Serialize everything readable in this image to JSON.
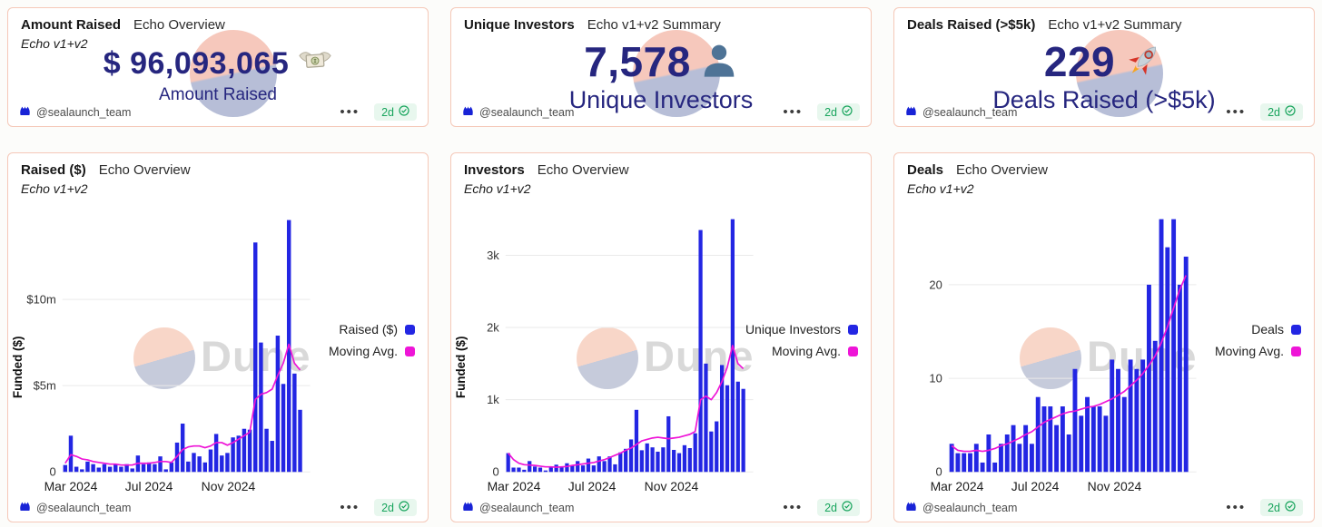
{
  "footer": {
    "author": "@sealaunch_team",
    "menu": "•••",
    "age": "2d",
    "age_color": "#17a45c",
    "logo_icon": "seal-logo-icon",
    "verified_icon": "check-circle-icon"
  },
  "watermark": {
    "text": "Dune",
    "circle_top_color": "#f8d6c8",
    "circle_bottom_color": "#c6cbdb"
  },
  "counters": [
    {
      "title": "Amount Raised",
      "subtitle": "Echo Overview",
      "note": "Echo v1+v2",
      "value": "$ 96,093,065",
      "icon": "money-with-wings",
      "label": "Amount Raised",
      "value_color": "#26267f"
    },
    {
      "title": "Unique Investors",
      "subtitle": "Echo v1+v2 Summary",
      "value": "7,578",
      "icon": "bust",
      "label": "Unique Investors",
      "value_color": "#26267f"
    },
    {
      "title": "Deals Raised (>$5k)",
      "subtitle": "Echo v1+v2 Summary",
      "value": "229",
      "icon": "rocket",
      "label": "Deals Raised (>$5k)",
      "value_color": "#26267f"
    }
  ],
  "chart_data": [
    {
      "type": "bar",
      "title": "Raised ($)",
      "subtitle": "Echo Overview",
      "note": "Echo v1+v2",
      "ylabel": "Funded ($)",
      "unit": "$m",
      "ymax": 14.65,
      "grid": true,
      "legend_position": "right",
      "yticks": [
        {
          "label": "$10m",
          "value": 10
        },
        {
          "label": "$5m",
          "value": 5
        },
        {
          "label": "0",
          "value": 0
        }
      ],
      "xticks": [
        "Mar 2024",
        "Jul 2024",
        "Nov 2024"
      ],
      "legend": [
        {
          "label": "Raised ($)",
          "color": "#2326e3"
        },
        {
          "label": "Moving Avg.",
          "color": "#ee15d7"
        }
      ],
      "values": [
        0.4,
        2.1,
        0.3,
        0.15,
        0.6,
        0.45,
        0.25,
        0.45,
        0.3,
        0.45,
        0.3,
        0.45,
        0.2,
        0.95,
        0.45,
        0.55,
        0.45,
        0.9,
        0.15,
        0.55,
        1.7,
        2.8,
        0.6,
        1.1,
        0.9,
        0.55,
        1.3,
        2.2,
        0.95,
        1.1,
        2.0,
        2.1,
        2.5,
        2.45,
        13.3,
        7.5,
        2.5,
        1.8,
        7.9,
        5.1,
        14.6,
        5.7,
        3.6
      ],
      "moving_avg": [
        0.5,
        1.0,
        0.9,
        0.75,
        0.7,
        0.6,
        0.55,
        0.5,
        0.45,
        0.45,
        0.4,
        0.4,
        0.4,
        0.5,
        0.5,
        0.5,
        0.55,
        0.6,
        0.6,
        0.55,
        0.9,
        1.3,
        1.45,
        1.5,
        1.5,
        1.4,
        1.5,
        1.7,
        1.7,
        1.55,
        1.7,
        1.9,
        2.1,
        2.3,
        4.2,
        4.5,
        4.6,
        4.8,
        5.6,
        6.3,
        7.4,
        6.3,
        5.9
      ]
    },
    {
      "type": "bar",
      "title": "Investors",
      "subtitle": "Echo Overview",
      "note": "Echo v1+v2",
      "ylabel": "Funded ($)",
      "unit": "investors",
      "ymax": 3500,
      "grid": true,
      "legend_position": "right",
      "yticks": [
        {
          "label": "3k",
          "value": 3000
        },
        {
          "label": "2k",
          "value": 2000
        },
        {
          "label": "1k",
          "value": 1000
        },
        {
          "label": "0",
          "value": 0
        }
      ],
      "xticks": [
        "Mar 2024",
        "Jul 2024",
        "Nov 2024"
      ],
      "legend": [
        {
          "label": "Unique Investors",
          "color": "#2326e3"
        },
        {
          "label": "Moving Avg.",
          "color": "#ee15d7"
        }
      ],
      "values": [
        260,
        60,
        60,
        30,
        150,
        75,
        60,
        20,
        65,
        100,
        65,
        120,
        90,
        150,
        90,
        185,
        90,
        215,
        150,
        215,
        105,
        270,
        320,
        450,
        860,
        300,
        395,
        340,
        280,
        340,
        770,
        305,
        260,
        370,
        330,
        535,
        3350,
        1500,
        560,
        700,
        1480,
        1200,
        3600,
        1250,
        1150
      ],
      "moving_avg": [
        260,
        170,
        120,
        100,
        95,
        90,
        80,
        70,
        70,
        65,
        70,
        75,
        90,
        100,
        110,
        120,
        130,
        150,
        170,
        200,
        230,
        260,
        300,
        330,
        380,
        430,
        450,
        470,
        480,
        470,
        460,
        470,
        480,
        500,
        520,
        560,
        1000,
        1050,
        1000,
        1100,
        1250,
        1450,
        1750,
        1500,
        1430
      ]
    },
    {
      "type": "bar",
      "title": "Deals",
      "subtitle": "Echo Overview",
      "note": "Echo v1+v2",
      "ylabel": "",
      "unit": "deals",
      "ymax": 27,
      "grid": true,
      "legend_position": "right",
      "yticks": [
        {
          "label": "20",
          "value": 20
        },
        {
          "label": "10",
          "value": 10
        },
        {
          "label": "0",
          "value": 0
        }
      ],
      "xticks": [
        "Mar 2024",
        "Jul 2024",
        "Nov 2024"
      ],
      "legend": [
        {
          "label": "Deals",
          "color": "#2326e3"
        },
        {
          "label": "Moving Avg.",
          "color": "#ee15d7"
        }
      ],
      "values": [
        3,
        2,
        2,
        2,
        3,
        1,
        4,
        1,
        3,
        4,
        5,
        3,
        5,
        3,
        8,
        7,
        7,
        5,
        7,
        4,
        11,
        6,
        8,
        7,
        7,
        6,
        12,
        11,
        8,
        12,
        11,
        12,
        20,
        14,
        27,
        24,
        27,
        20,
        23
      ],
      "moving_avg": [
        2.8,
        2.3,
        2.2,
        2.2,
        2.3,
        2.2,
        2.3,
        2.5,
        2.8,
        3.0,
        3.3,
        3.6,
        4.0,
        4.3,
        4.8,
        5.3,
        5.6,
        5.9,
        6.2,
        6.4,
        6.5,
        6.7,
        6.9,
        7.0,
        7.2,
        7.5,
        7.8,
        8.2,
        8.6,
        9.2,
        9.8,
        10.5,
        11.4,
        12.4,
        13.8,
        15.5,
        17.5,
        19.5,
        21.0
      ]
    }
  ]
}
